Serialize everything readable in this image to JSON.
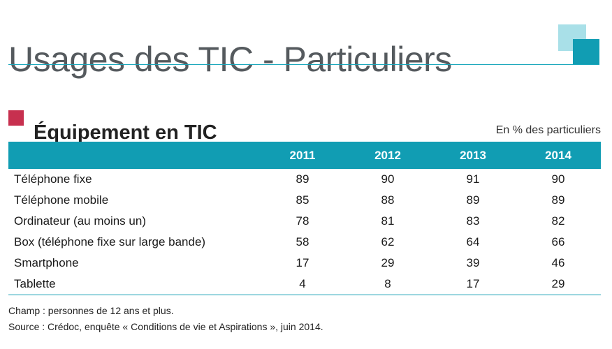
{
  "header": {
    "title": "Usages des TIC - Particuliers"
  },
  "section": {
    "title": "Équipement en TIC",
    "unit": "En % des particuliers"
  },
  "colors": {
    "accent": "#119db3",
    "accent_light": "#a9e0e8",
    "marker": "#c7304f",
    "title_text": "#555a5e"
  },
  "table": {
    "columns": [
      "2011",
      "2012",
      "2013",
      "2014"
    ],
    "rows": [
      {
        "label": "Téléphone fixe",
        "values": [
          "89",
          "90",
          "91",
          "90"
        ]
      },
      {
        "label": "Téléphone mobile",
        "values": [
          "85",
          "88",
          "89",
          "89"
        ]
      },
      {
        "label": "Ordinateur (au moins un)",
        "values": [
          "78",
          "81",
          "83",
          "82"
        ]
      },
      {
        "label": "Box (téléphone fixe sur large bande)",
        "values": [
          "58",
          "62",
          "64",
          "66"
        ]
      },
      {
        "label": "Smartphone",
        "values": [
          "17",
          "29",
          "39",
          "46"
        ]
      },
      {
        "label": "Tablette",
        "values": [
          "4",
          "8",
          "17",
          "29"
        ]
      }
    ]
  },
  "notes": {
    "champ": "Champ : personnes de 12 ans et plus.",
    "source": "Source : Crédoc, enquête « Conditions de vie et Aspirations », juin 2014."
  }
}
